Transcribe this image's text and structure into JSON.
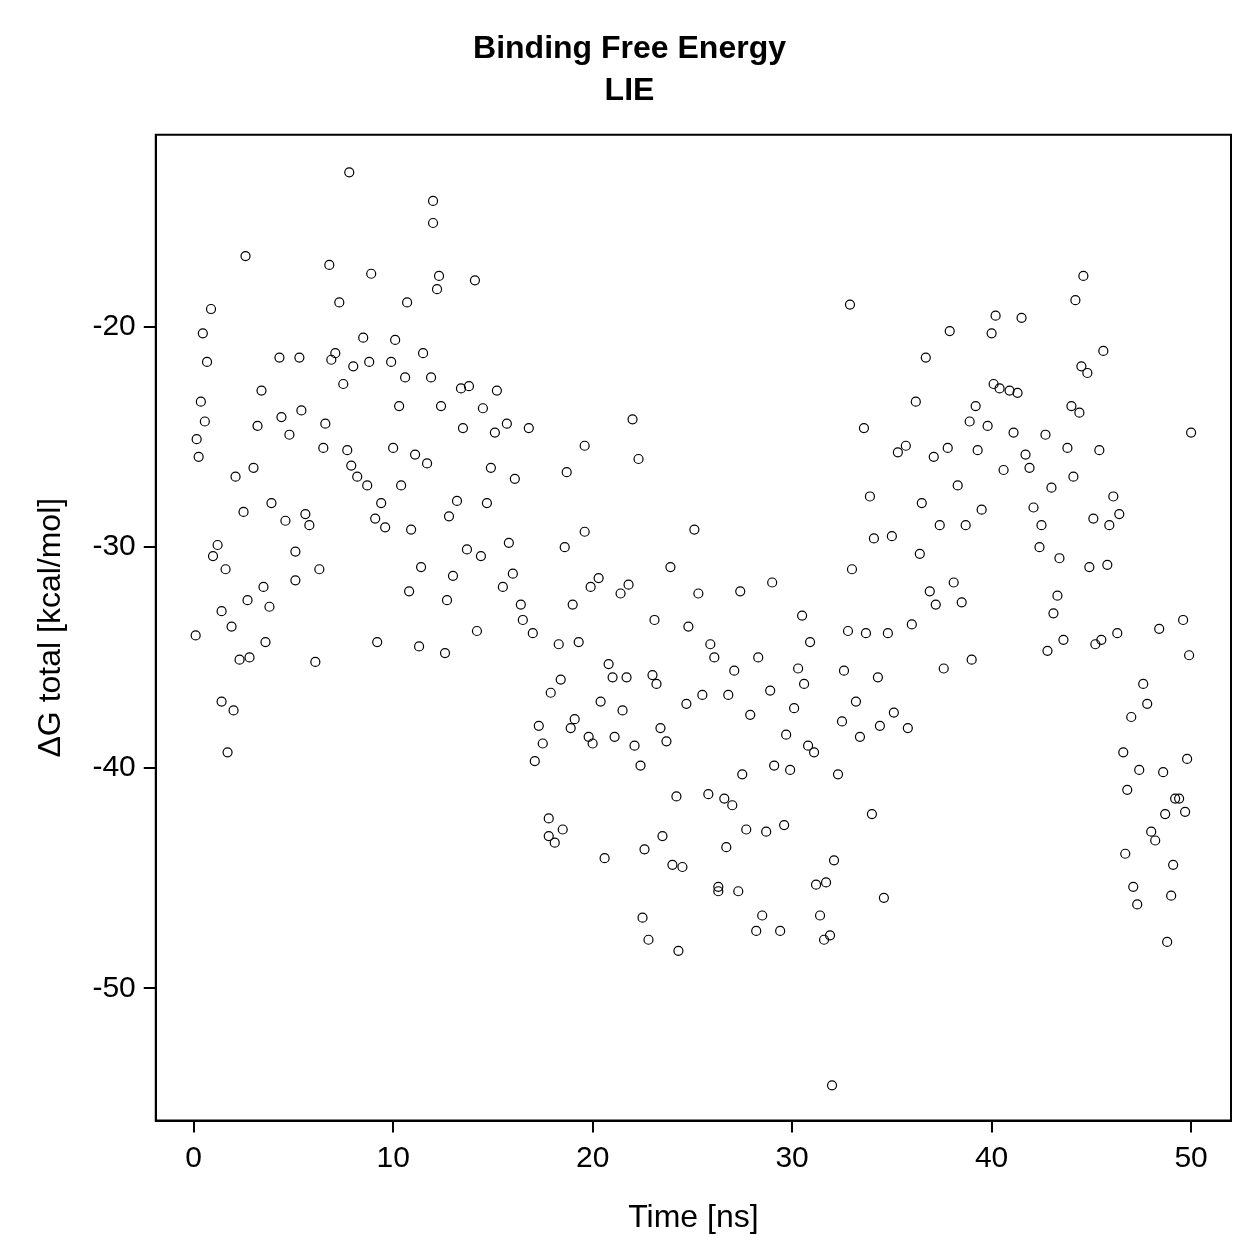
{
  "chart_data": {
    "type": "scatter",
    "title": "Binding Free Energy",
    "subtitle": "LIE",
    "xlabel": "Time [ns]",
    "ylabel": "ΔG total [kcal/mol]",
    "xlim": [
      -1.9,
      52
    ],
    "ylim": [
      -56,
      -11.3
    ],
    "xticks": [
      0,
      10,
      20,
      30,
      40,
      50
    ],
    "yticks": [
      -50,
      -40,
      -30,
      -20
    ],
    "grid": false,
    "legend": false,
    "marker": "circle",
    "series": [
      {
        "color": "#000000",
        "x": [
          0.1,
          0.15,
          0.25,
          0.46,
          0.36,
          0.56,
          0.67,
          0.87,
          0.97,
          1.2,
          1.4,
          1.4,
          1.6,
          1.7,
          1.9,
          2.0,
          2.1,
          2.3,
          2.6,
          2.5,
          2.7,
          2.8,
          3.0,
          3.2,
          3.4,
          3.5,
          3.6,
          3.8,
          3.9,
          4.3,
          4.4,
          4.6,
          4.8,
          5.1,
          5.1,
          5.3,
          5.4,
          5.6,
          5.8,
          6.1,
          6.3,
          6.5,
          6.6,
          6.8,
          6.9,
          7.1,
          7.3,
          7.5,
          7.7,
          7.8,
          7.9,
          8.0,
          8.2,
          8.5,
          8.7,
          8.8,
          8.9,
          9.1,
          9.2,
          9.4,
          9.6,
          9.9,
          10.0,
          10.1,
          10.3,
          10.4,
          10.6,
          10.7,
          10.8,
          10.9,
          11.1,
          11.3,
          11.4,
          11.5,
          11.7,
          11.9,
          12.0,
          12.0,
          12.2,
          12.3,
          12.4,
          12.6,
          12.7,
          12.8,
          13.0,
          13.2,
          13.4,
          13.5,
          13.7,
          13.8,
          14.1,
          14.2,
          14.4,
          14.5,
          14.7,
          14.9,
          15.1,
          15.2,
          15.5,
          15.7,
          15.8,
          16.0,
          16.1,
          16.4,
          16.5,
          16.8,
          17.0,
          17.1,
          17.3,
          17.5,
          17.8,
          17.8,
          17.9,
          18.1,
          18.3,
          18.4,
          18.5,
          18.6,
          18.7,
          18.9,
          19.0,
          19.1,
          19.3,
          19.6,
          19.6,
          19.8,
          19.9,
          20.0,
          20.3,
          20.4,
          20.6,
          20.8,
          21.0,
          21.1,
          21.4,
          21.5,
          21.7,
          21.8,
          22.0,
          22.1,
          22.3,
          22.4,
          22.5,
          22.6,
          22.8,
          23.0,
          23.1,
          23.2,
          23.4,
          23.5,
          23.7,
          23.9,
          24.0,
          24.2,
          24.3,
          24.5,
          24.7,
          24.8,
          25.1,
          25.3,
          25.5,
          25.8,
          25.9,
          26.1,
          26.3,
          26.3,
          26.6,
          26.7,
          26.8,
          27.0,
          27.1,
          27.3,
          27.4,
          27.5,
          27.7,
          27.9,
          28.2,
          28.3,
          28.5,
          28.7,
          28.9,
          29.0,
          29.1,
          29.4,
          29.6,
          29.7,
          29.9,
          30.1,
          30.3,
          30.5,
          30.6,
          30.8,
          30.9,
          31.1,
          31.2,
          31.4,
          31.6,
          31.7,
          31.9,
          32.0,
          32.1,
          32.3,
          32.5,
          32.6,
          32.8,
          32.9,
          33.0,
          33.2,
          33.4,
          33.6,
          33.7,
          33.9,
          34.0,
          34.1,
          34.3,
          34.4,
          34.6,
          34.8,
          35.0,
          35.1,
          35.3,
          35.7,
          35.8,
          36.0,
          36.2,
          36.4,
          36.5,
          36.7,
          36.9,
          37.1,
          37.2,
          37.4,
          37.6,
          37.8,
          37.9,
          38.1,
          38.3,
          38.5,
          38.7,
          38.9,
          39.0,
          39.2,
          39.3,
          39.5,
          39.8,
          40.0,
          40.1,
          40.2,
          40.4,
          40.6,
          40.9,
          41.1,
          41.3,
          41.5,
          41.7,
          41.9,
          42.1,
          42.4,
          42.5,
          42.7,
          42.8,
          43.0,
          43.1,
          43.3,
          43.4,
          43.6,
          43.8,
          44.0,
          44.1,
          44.2,
          44.4,
          44.5,
          44.6,
          44.8,
          44.9,
          45.1,
          45.2,
          45.4,
          45.5,
          45.6,
          45.8,
          45.9,
          46.1,
          46.3,
          46.4,
          46.6,
          46.7,
          46.8,
          47.0,
          47.1,
          47.3,
          47.4,
          47.6,
          47.8,
          48.0,
          48.2,
          48.4,
          48.6,
          48.7,
          48.8,
          49.0,
          49.1,
          49.2,
          49.4,
          49.6,
          49.7,
          49.8,
          49.9,
          50.0
        ],
        "values": [
          -34.0,
          -25.1,
          -25.9,
          -20.3,
          -23.4,
          -24.3,
          -21.6,
          -19.2,
          -30.4,
          -29.9,
          -32.9,
          -37.0,
          -31.0,
          -39.3,
          -33.6,
          -37.4,
          -26.8,
          -35.1,
          -16.8,
          -28.4,
          -32.4,
          -35.0,
          -26.4,
          -24.5,
          -22.9,
          -31.8,
          -34.3,
          -32.7,
          -28.0,
          -21.4,
          -24.1,
          -28.8,
          -24.9,
          -30.2,
          -31.5,
          -21.4,
          -23.8,
          -28.5,
          -29.0,
          -35.2,
          -31.0,
          -25.5,
          -24.4,
          -17.2,
          -21.5,
          -21.2,
          -18.9,
          -22.6,
          -25.6,
          -13.0,
          -26.3,
          -21.8,
          -26.8,
          -20.5,
          -27.2,
          -21.6,
          -17.6,
          -28.7,
          -34.3,
          -28.0,
          -29.1,
          -21.6,
          -25.5,
          -20.6,
          -23.6,
          -27.2,
          -22.3,
          -18.9,
          -32.0,
          -29.2,
          -25.8,
          -34.5,
          -30.9,
          -21.2,
          -26.2,
          -22.3,
          -14.3,
          -15.3,
          -18.3,
          -17.7,
          -23.6,
          -34.8,
          -32.4,
          -28.6,
          -31.3,
          -27.9,
          -22.8,
          -24.6,
          -30.1,
          -22.7,
          -17.9,
          -33.8,
          -30.4,
          -23.7,
          -28.0,
          -26.4,
          -24.8,
          -22.9,
          -31.8,
          -24.4,
          -29.8,
          -31.2,
          -26.9,
          -32.6,
          -33.3,
          -24.6,
          -33.9,
          -39.7,
          -38.1,
          -38.9,
          -42.3,
          -43.1,
          -36.6,
          -43.4,
          -34.4,
          -36.0,
          -42.8,
          -30.0,
          -26.6,
          -38.2,
          -32.6,
          -37.8,
          -34.3,
          -29.3,
          -25.4,
          -38.6,
          -31.8,
          -38.9,
          -31.4,
          -37.0,
          -44.1,
          -35.3,
          -35.9,
          -38.6,
          -32.1,
          -37.4,
          -35.9,
          -31.7,
          -24.2,
          -39.0,
          -26.0,
          -39.9,
          -46.8,
          -43.7,
          -47.8,
          -35.8,
          -33.3,
          -36.2,
          -38.2,
          -43.1,
          -38.8,
          -30.9,
          -44.4,
          -41.3,
          -48.3,
          -44.5,
          -37.1,
          -33.6,
          -29.2,
          -32.1,
          -36.7,
          -41.2,
          -34.4,
          -35.0,
          -45.4,
          -45.6,
          -41.4,
          -43.6,
          -36.7,
          -41.7,
          -35.6,
          -45.6,
          -32.0,
          -40.3,
          -42.8,
          -37.6,
          -47.4,
          -35.0,
          -46.7,
          -42.9,
          -36.5,
          -31.6,
          -39.9,
          -47.4,
          -42.6,
          -38.5,
          -40.1,
          -37.3,
          -35.5,
          -33.1,
          -36.2,
          -39.0,
          -34.3,
          -39.3,
          -45.3,
          -46.7,
          -47.8,
          -45.2,
          -47.6,
          -54.4,
          -44.2,
          -40.3,
          -37.9,
          -35.6,
          -33.8,
          -19.0,
          -31.0,
          -37.0,
          -38.6,
          -24.6,
          -33.9,
          -27.7,
          -42.1,
          -29.6,
          -35.9,
          -38.1,
          -45.9,
          -33.9,
          -29.5,
          -37.5,
          -25.7,
          -25.4,
          -38.2,
          -33.5,
          -23.4,
          -30.3,
          -28.0,
          -21.4,
          -32.0,
          -25.9,
          -32.6,
          -29.0,
          -35.5,
          -25.5,
          -20.2,
          -31.6,
          -27.2,
          -32.5,
          -29.0,
          -24.3,
          -35.1,
          -23.6,
          -25.6,
          -28.3,
          -24.5,
          -20.3,
          -22.6,
          -19.5,
          -22.8,
          -26.5,
          -22.9,
          -24.8,
          -23.0,
          -19.6,
          -25.8,
          -26.4,
          -28.2,
          -30.0,
          -29.0,
          -24.9,
          -34.7,
          -27.3,
          -33.0,
          -32.2,
          -30.5,
          -34.2,
          -25.5,
          -23.6,
          -26.8,
          -18.8,
          -23.9,
          -21.8,
          -17.7,
          -22.1,
          -30.9,
          -28.7,
          -34.4,
          -25.6,
          -34.2,
          -21.1,
          -30.8,
          -29.0,
          -27.7,
          -33.9,
          -28.5,
          -39.3,
          -43.9,
          -41.0,
          -37.7,
          -45.4,
          -46.2,
          -40.1,
          -36.2,
          -37.1,
          -42.9,
          -43.3,
          -33.7,
          -40.2,
          -42.1,
          -47.9,
          -45.8,
          -44.4,
          -41.4,
          -41.4,
          -33.3,
          -42.0,
          -39.6,
          -34.9,
          -24.8
        ]
      }
    ]
  }
}
